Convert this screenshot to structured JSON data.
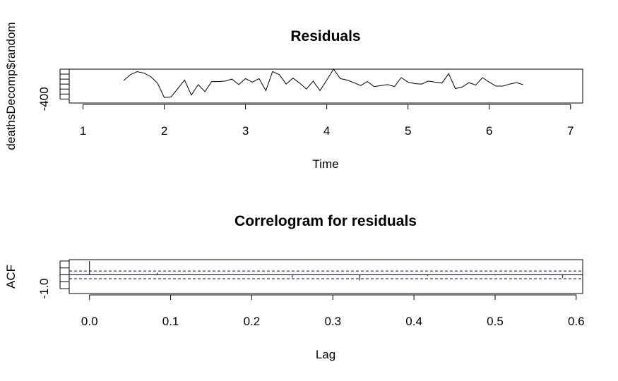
{
  "chart_data": [
    {
      "type": "line",
      "title": "Residuals",
      "xlabel": "Time",
      "ylabel": "deathsDecomp$random",
      "xlim": [
        0.83,
        7.15
      ],
      "ylim": [
        -480,
        200
      ],
      "x_ticks": [
        "1",
        "2",
        "3",
        "4",
        "5",
        "6",
        "7"
      ],
      "y_ticks": [
        {
          "value": -400,
          "label": "-400"
        }
      ],
      "y_minor_ticks": [
        -400,
        -300,
        -200,
        -100,
        0,
        100,
        200
      ],
      "series": [
        {
          "x": [
            1.5,
            1.583,
            1.667,
            1.75,
            1.833,
            1.917,
            2.0,
            2.083,
            2.167,
            2.25,
            2.333,
            2.417,
            2.5,
            2.583,
            2.667,
            2.75,
            2.833,
            2.917,
            3.0,
            3.083,
            3.167,
            3.25,
            3.333,
            3.417,
            3.5,
            3.583,
            3.667,
            3.75,
            3.833,
            3.917,
            4.0,
            4.083,
            4.167,
            4.25,
            4.333,
            4.417,
            4.5,
            4.583,
            4.667,
            4.75,
            4.833,
            4.917,
            5.0,
            5.083,
            5.167,
            5.25,
            5.333,
            5.417,
            5.5,
            5.583,
            5.667,
            5.75,
            5.833,
            5.917,
            6.0,
            6.083,
            6.167,
            6.25,
            6.333,
            6.417
          ],
          "y": [
            -30,
            90,
            150,
            120,
            50,
            -80,
            -370,
            -360,
            -190,
            -20,
            -320,
            -110,
            -250,
            -50,
            -50,
            -40,
            0,
            -110,
            10,
            -60,
            10,
            -230,
            150,
            90,
            -100,
            20,
            -80,
            -200,
            -40,
            -230,
            -20,
            210,
            10,
            -20,
            -70,
            -130,
            -50,
            -150,
            -130,
            -110,
            -150,
            30,
            -60,
            -90,
            -100,
            -40,
            -60,
            -80,
            110,
            -190,
            -160,
            -70,
            -120,
            30,
            -60,
            -140,
            -140,
            -100,
            -70,
            -110
          ]
        }
      ]
    },
    {
      "type": "bar",
      "title": "Correlogram for residuals",
      "xlabel": "Lag",
      "ylabel": "ACF",
      "xlim": [
        -0.025,
        0.608
      ],
      "ylim": [
        -1.35,
        1.1
      ],
      "x_ticks": [
        "0.0",
        "0.1",
        "0.2",
        "0.3",
        "0.4",
        "0.5",
        "0.6"
      ],
      "y_ticks": [
        {
          "value": -1.0,
          "label": "-1.0"
        }
      ],
      "y_minor_ticks": [
        -1.0,
        -0.5,
        0.0,
        0.5,
        1.0
      ],
      "x": [
        0.0,
        0.0833,
        0.1667,
        0.25,
        0.3333,
        0.4167,
        0.5,
        0.5833
      ],
      "values": [
        1.0,
        0.15,
        0.0,
        -0.2,
        -0.4,
        -0.08,
        -0.04,
        -0.22
      ],
      "confidence_band": [
        -0.28,
        0.28
      ],
      "band_color": "#00008b"
    }
  ]
}
